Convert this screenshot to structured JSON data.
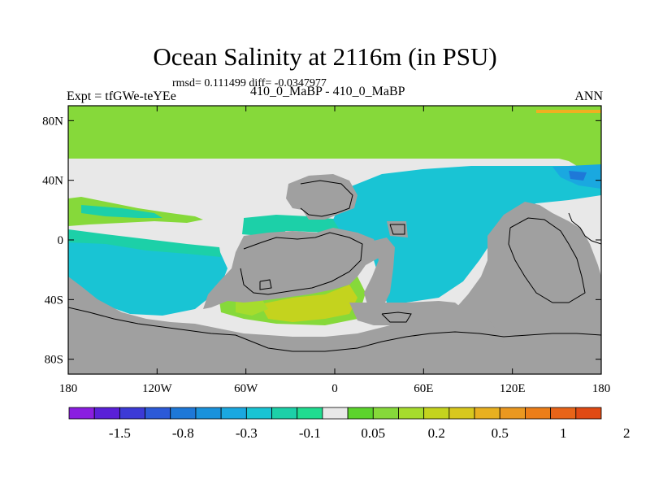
{
  "title": "Ocean Salinity at 2116m (in PSU)",
  "stats": "rmsd= 0.111499 diff= -0.0347977",
  "left_label": "Expt = tfGWe-teYEe",
  "center_label": "410_0_MaBP - 410_0_MaBP",
  "right_label": "ANN",
  "colors": {
    "land": "#a0a0a0",
    "near_zero": "#e8e8e8",
    "green": "#86d93a",
    "light_green": "#a6dc2d",
    "teal": "#1cd0a8",
    "cyan": "#19c4d4",
    "mid_blue": "#1aa8e0",
    "blue": "#1e78d8",
    "olive": "#c4d31e",
    "orange": "#f0b020",
    "frame": "#000000"
  },
  "chart_data": {
    "type": "heatmap",
    "title": "Ocean Salinity at 2116m (in PSU)",
    "projection": "cylindrical equidistant",
    "xlim": [
      -180,
      180
    ],
    "ylim": [
      -90,
      90
    ],
    "x_ticks": [
      -180,
      -120,
      -60,
      0,
      60,
      120,
      180
    ],
    "x_tick_labels": [
      "180",
      "120W",
      "60W",
      "0",
      "60E",
      "120E",
      "180"
    ],
    "y_ticks": [
      80,
      40,
      0,
      -40,
      -80
    ],
    "y_tick_labels": [
      "80N",
      "40N",
      "0",
      "40S",
      "80S"
    ],
    "colorbar": {
      "colors": [
        "#8a1ee0",
        "#5a20d8",
        "#3c3ad6",
        "#2c5ad8",
        "#1e78d8",
        "#1a92dc",
        "#1aa8e0",
        "#19c4d4",
        "#1cd0a8",
        "#20dc90",
        "#e8e8e8",
        "#5cd42c",
        "#86d93a",
        "#a6dc2d",
        "#c4d31e",
        "#d8c81e",
        "#e8b020",
        "#ea9820",
        "#ec7e18",
        "#e86418",
        "#e04a14"
      ],
      "labels": [
        "-1.5",
        "-0.8",
        "-0.3",
        "-0.1",
        "0.05",
        "0.2",
        "0.5",
        "1",
        "2"
      ]
    }
  }
}
